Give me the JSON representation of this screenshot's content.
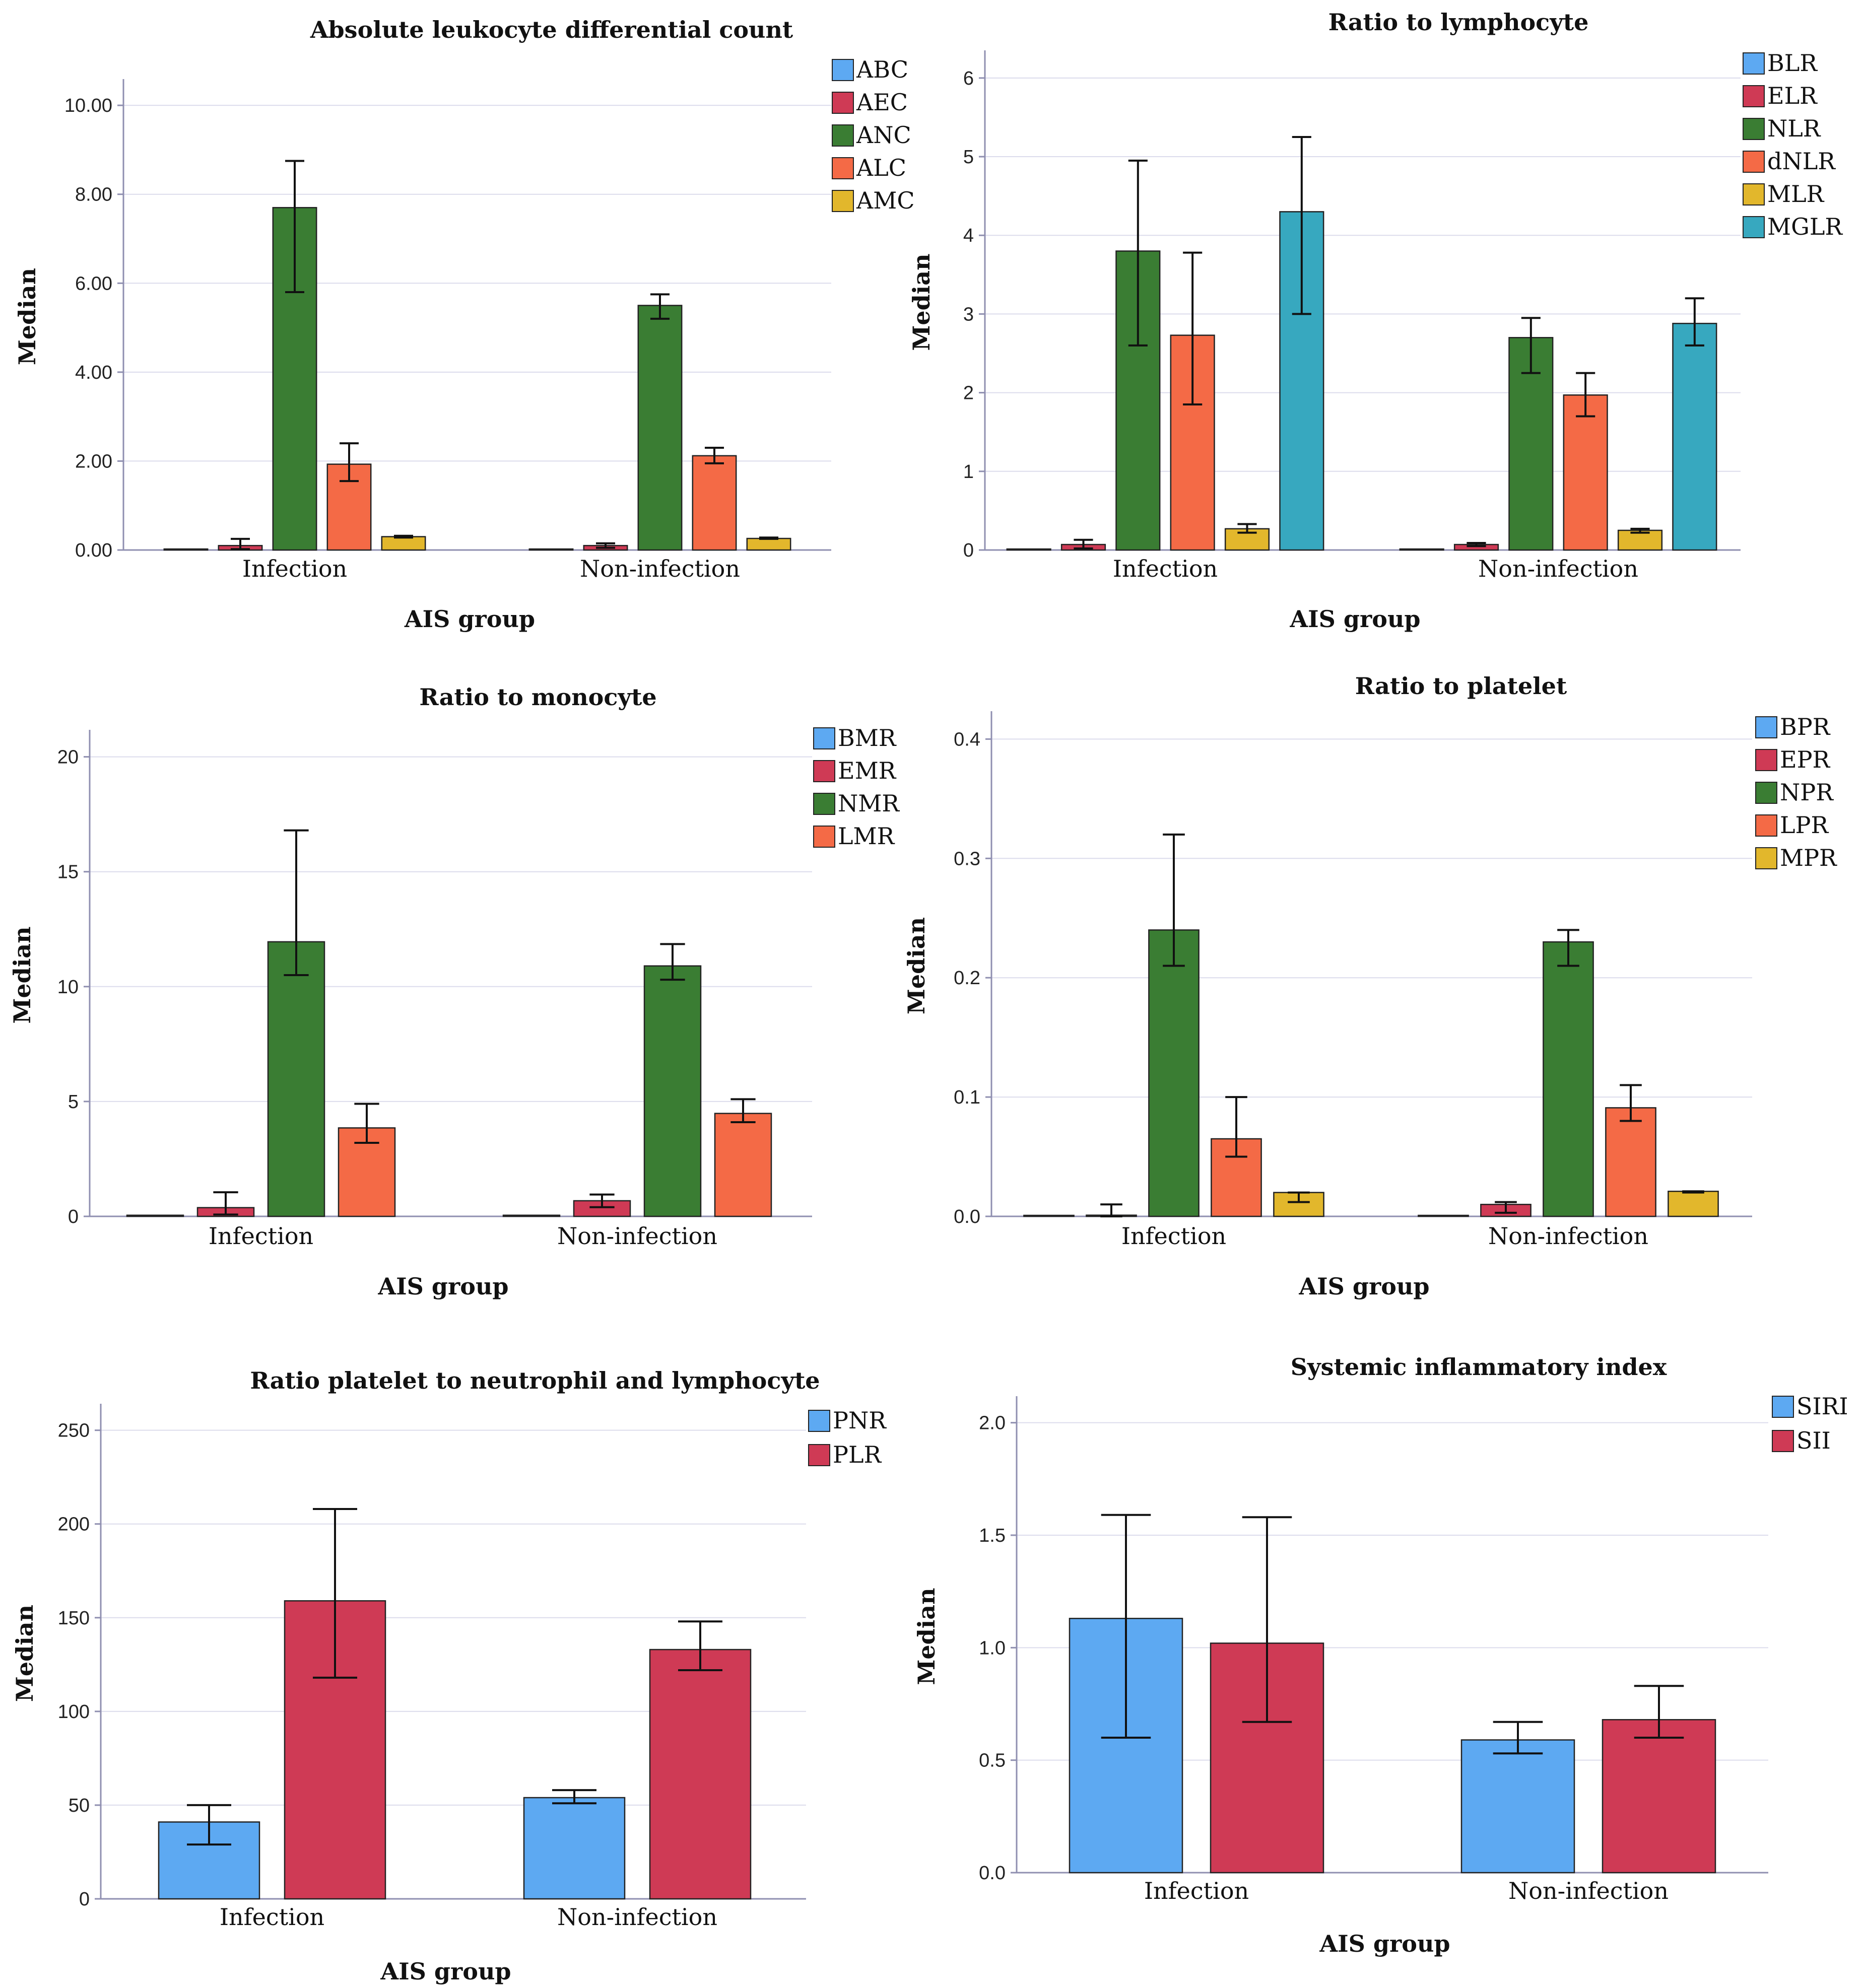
{
  "colors": {
    "blue": "#5da9f2",
    "red": "#cf3a55",
    "green": "#3a7d33",
    "orange": "#f46a46",
    "yellow": "#e2b72c",
    "teal": "#37a8bf"
  },
  "chart_data": [
    {
      "type": "bar",
      "title": "Absolute leukocyte differential count",
      "xlabel": "AIS group",
      "ylabel": "Median",
      "ylim": [
        0,
        10.5
      ],
      "yticks": [
        0,
        2,
        4,
        6,
        8,
        10
      ],
      "ytick_labels": [
        "0.00",
        "2.00",
        "4.00",
        "6.00",
        "8.00",
        "10.00"
      ],
      "categories": [
        "Infection",
        "Non-infection"
      ],
      "series": [
        {
          "name": "ABC",
          "color": "blue",
          "values": [
            0.02,
            0.02
          ],
          "err_low": [
            0.02,
            0.02
          ],
          "err_high": [
            0.02,
            0.02
          ]
        },
        {
          "name": "AEC",
          "color": "red",
          "values": [
            0.1,
            0.1
          ],
          "err_low": [
            0.02,
            0.05
          ],
          "err_high": [
            0.25,
            0.15
          ]
        },
        {
          "name": "ANC",
          "color": "green",
          "values": [
            7.7,
            5.5
          ],
          "err_low": [
            5.8,
            5.2
          ],
          "err_high": [
            8.75,
            5.75
          ]
        },
        {
          "name": "ALC",
          "color": "orange",
          "values": [
            1.93,
            2.12
          ],
          "err_low": [
            1.55,
            1.95
          ],
          "err_high": [
            2.4,
            2.3
          ]
        },
        {
          "name": "AMC",
          "color": "yellow",
          "values": [
            0.3,
            0.26
          ],
          "err_low": [
            0.28,
            0.25
          ],
          "err_high": [
            0.32,
            0.28
          ]
        }
      ]
    },
    {
      "type": "bar",
      "title": "Ratio to lymphocyte",
      "xlabel": "AIS group",
      "ylabel": "Median",
      "ylim": [
        0,
        6.3
      ],
      "yticks": [
        0,
        1,
        2,
        3,
        4,
        5,
        6
      ],
      "ytick_labels": [
        "0",
        "1",
        "2",
        "3",
        "4",
        "5",
        "6"
      ],
      "categories": [
        "Infection",
        "Non-infection"
      ],
      "series": [
        {
          "name": "BLR",
          "color": "blue",
          "values": [
            0.01,
            0.01
          ],
          "err_low": [
            0.01,
            0.01
          ],
          "err_high": [
            0.01,
            0.01
          ]
        },
        {
          "name": "ELR",
          "color": "red",
          "values": [
            0.07,
            0.07
          ],
          "err_low": [
            0.02,
            0.05
          ],
          "err_high": [
            0.13,
            0.09
          ]
        },
        {
          "name": "NLR",
          "color": "green",
          "values": [
            3.8,
            2.7
          ],
          "err_low": [
            2.6,
            2.25
          ],
          "err_high": [
            4.95,
            2.95
          ]
        },
        {
          "name": "dNLR",
          "color": "orange",
          "values": [
            2.73,
            1.97
          ],
          "err_low": [
            1.85,
            1.7
          ],
          "err_high": [
            3.78,
            2.25
          ]
        },
        {
          "name": "MLR",
          "color": "yellow",
          "values": [
            0.27,
            0.25
          ],
          "err_low": [
            0.22,
            0.22
          ],
          "err_high": [
            0.33,
            0.27
          ]
        },
        {
          "name": "MGLR",
          "color": "teal",
          "values": [
            4.3,
            2.88
          ],
          "err_low": [
            3.0,
            2.6
          ],
          "err_high": [
            5.25,
            3.2
          ]
        }
      ]
    },
    {
      "type": "bar",
      "title": "Ratio to monocyte",
      "xlabel": "AIS group",
      "ylabel": "Median",
      "ylim": [
        0,
        21
      ],
      "yticks": [
        0,
        5,
        10,
        15,
        20
      ],
      "ytick_labels": [
        "0",
        "5",
        "10",
        "15",
        "20"
      ],
      "categories": [
        "Infection",
        "Non-infection"
      ],
      "series": [
        {
          "name": "BMR",
          "color": "blue",
          "values": [
            0.05,
            0.05
          ],
          "err_low": [
            0.05,
            0.05
          ],
          "err_high": [
            0.05,
            0.05
          ]
        },
        {
          "name": "EMR",
          "color": "red",
          "values": [
            0.38,
            0.68
          ],
          "err_low": [
            0.08,
            0.4
          ],
          "err_high": [
            1.05,
            0.95
          ]
        },
        {
          "name": "NMR",
          "color": "green",
          "values": [
            11.95,
            10.9
          ],
          "err_low": [
            10.5,
            10.3
          ],
          "err_high": [
            16.8,
            11.85
          ]
        },
        {
          "name": "LMR",
          "color": "orange",
          "values": [
            3.85,
            4.48
          ],
          "err_low": [
            3.2,
            4.1
          ],
          "err_high": [
            4.9,
            5.1
          ]
        }
      ]
    },
    {
      "type": "bar",
      "title": "Ratio to platelet",
      "xlabel": "AIS group",
      "ylabel": "Median",
      "ylim": [
        0,
        0.42
      ],
      "yticks": [
        0,
        0.1,
        0.2,
        0.3,
        0.4
      ],
      "ytick_labels": [
        "0.0",
        "0.1",
        "0.2",
        "0.3",
        "0.4"
      ],
      "categories": [
        "Infection",
        "Non-infection"
      ],
      "series": [
        {
          "name": "BPR",
          "color": "blue",
          "values": [
            0.0005,
            0.0005
          ],
          "err_low": [
            0.0005,
            0.0005
          ],
          "err_high": [
            0.0005,
            0.0005
          ]
        },
        {
          "name": "EPR",
          "color": "red",
          "values": [
            0.001,
            0.01
          ],
          "err_low": [
            0.0,
            0.003
          ],
          "err_high": [
            0.01,
            0.012
          ]
        },
        {
          "name": "NPR",
          "color": "green",
          "values": [
            0.24,
            0.23
          ],
          "err_low": [
            0.21,
            0.21
          ],
          "err_high": [
            0.32,
            0.24
          ]
        },
        {
          "name": "LPR",
          "color": "orange",
          "values": [
            0.065,
            0.091
          ],
          "err_low": [
            0.05,
            0.08
          ],
          "err_high": [
            0.1,
            0.11
          ]
        },
        {
          "name": "MPR",
          "color": "yellow",
          "values": [
            0.02,
            0.021
          ],
          "err_low": [
            0.012,
            0.02
          ],
          "err_high": [
            0.02,
            0.021
          ]
        }
      ]
    },
    {
      "type": "bar",
      "title": "Ratio platelet to neutrophil and lymphocyte",
      "xlabel": "AIS group",
      "ylabel": "Median",
      "ylim": [
        0,
        262
      ],
      "yticks": [
        0,
        50,
        100,
        150,
        200,
        250
      ],
      "ytick_labels": [
        "0",
        "50",
        "100",
        "150",
        "200",
        "250"
      ],
      "categories": [
        "Infection",
        "Non-infection"
      ],
      "series": [
        {
          "name": "PNR",
          "color": "blue",
          "values": [
            41,
            54
          ],
          "err_low": [
            29,
            51
          ],
          "err_high": [
            50,
            58
          ]
        },
        {
          "name": "PLR",
          "color": "red",
          "values": [
            159,
            133
          ],
          "err_low": [
            118,
            122
          ],
          "err_high": [
            208,
            148
          ]
        }
      ]
    },
    {
      "type": "bar",
      "title": "Systemic inflammatory index",
      "xlabel": "AIS group",
      "ylabel": "Median",
      "ylim": [
        0,
        2.1
      ],
      "yticks": [
        0,
        0.5,
        1,
        1.5,
        2
      ],
      "ytick_labels": [
        "0.0",
        "0.5",
        "1.0",
        "1.5",
        "2.0"
      ],
      "categories": [
        "Infection",
        "Non-infection"
      ],
      "series": [
        {
          "name": "SIRI",
          "color": "blue",
          "values": [
            1.13,
            0.59
          ],
          "err_low": [
            0.6,
            0.53
          ],
          "err_high": [
            1.59,
            0.67
          ]
        },
        {
          "name": "SII",
          "color": "red",
          "values": [
            1.02,
            0.68
          ],
          "err_low": [
            0.67,
            0.6
          ],
          "err_high": [
            1.58,
            0.83
          ]
        }
      ]
    }
  ]
}
